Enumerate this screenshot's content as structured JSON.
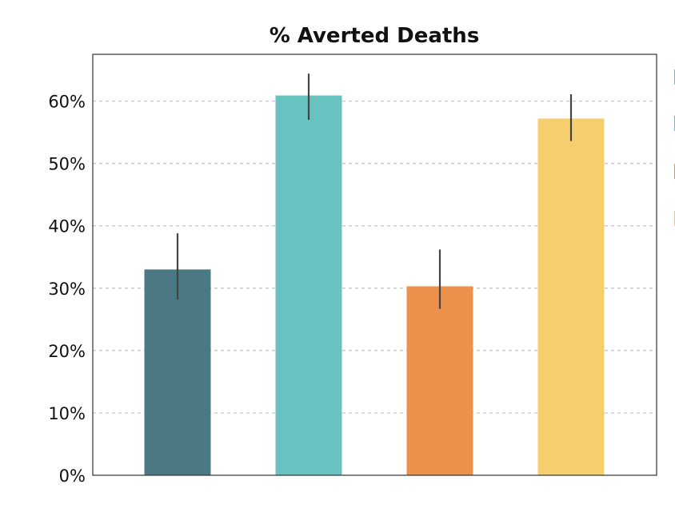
{
  "chart_data": {
    "type": "bar",
    "title": "% Averted Deaths",
    "xlabel": "",
    "ylabel": "",
    "categories": [
      "",
      "",
      "",
      ""
    ],
    "values": [
      33.0,
      60.9,
      30.3,
      57.2
    ],
    "error_low": [
      28.2,
      57.0,
      26.7,
      53.6
    ],
    "error_high": [
      38.8,
      64.4,
      36.2,
      61.1
    ],
    "colors": [
      "#4b7983",
      "#68c2c0",
      "#eb914c",
      "#f5cf6e"
    ],
    "ylim": [
      0,
      67.5
    ],
    "yticks": [
      0,
      10,
      20,
      30,
      40,
      50,
      60
    ],
    "ytick_labels": [
      "0%",
      "10%",
      "20%",
      "30%",
      "40%",
      "50%",
      "60%"
    ],
    "grid": true,
    "legend_position": "right, clipped",
    "legend_colors": [
      "#68c2c0",
      "#68c2c0",
      "#eb914c",
      "#f5cf6e"
    ]
  }
}
